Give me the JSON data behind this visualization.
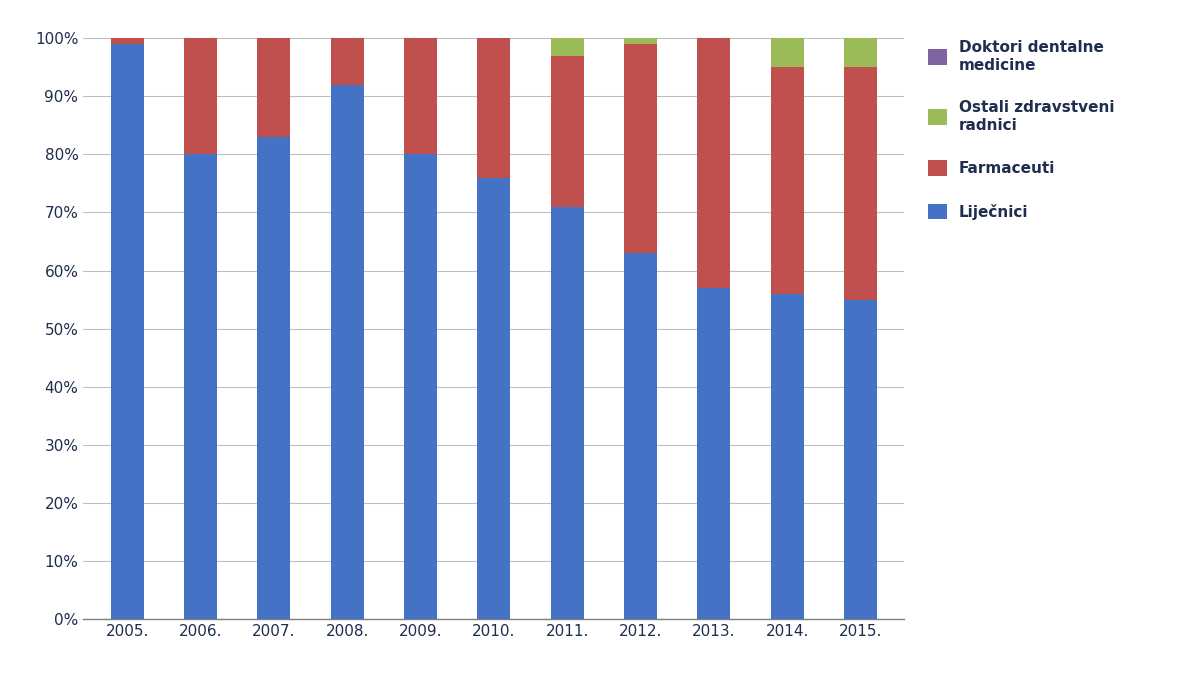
{
  "years": [
    "2005.",
    "2006.",
    "2007.",
    "2008.",
    "2009.",
    "2010.",
    "2011.",
    "2012.",
    "2013.",
    "2014.",
    "2015."
  ],
  "lijecnici": [
    99.0,
    80.0,
    83.0,
    92.0,
    80.0,
    76.0,
    71.0,
    63.0,
    57.0,
    56.0,
    55.0
  ],
  "farmaceuti": [
    1.0,
    20.0,
    17.0,
    8.0,
    20.0,
    24.0,
    26.0,
    36.0,
    43.0,
    39.0,
    40.0
  ],
  "ostali": [
    0.0,
    0.0,
    0.0,
    0.0,
    0.0,
    0.0,
    3.0,
    1.0,
    0.0,
    5.0,
    5.0
  ],
  "doktori": [
    0.0,
    0.0,
    0.0,
    0.0,
    0.0,
    0.0,
    0.0,
    0.0,
    0.0,
    0.0,
    0.0
  ],
  "color_lijecnici": "#4472C4",
  "color_farmaceuti": "#C0504D",
  "color_ostali": "#9BBB59",
  "color_doktori": "#8064A2",
  "legend_labels": [
    "Doktori dentalne\nmedicine",
    "Ostali zdravstveni\nradnici",
    "Farmaceuti",
    "Liječnici"
  ],
  "ylabel_ticks": [
    "0%",
    "10%",
    "20%",
    "30%",
    "40%",
    "50%",
    "60%",
    "70%",
    "80%",
    "90%",
    "100%"
  ],
  "background_color": "#FFFFFF",
  "grid_color": "#BFBFBF",
  "bar_width": 0.45
}
